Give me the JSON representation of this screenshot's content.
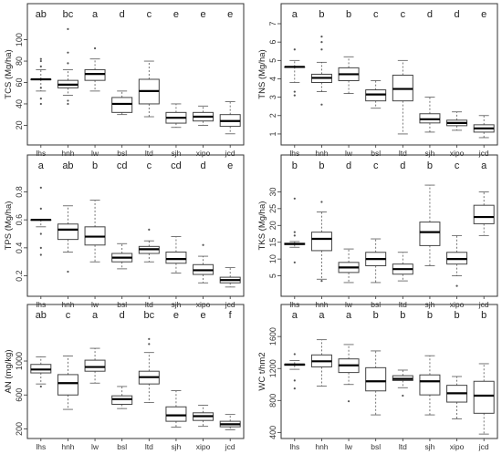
{
  "chart_data": [
    {
      "type": "box",
      "ylabel": "TCS (Mg/ha)",
      "ylim": [
        5,
        115
      ],
      "yticks": [
        20,
        40,
        60,
        80,
        100
      ],
      "categories": [
        "lhs",
        "hnh",
        "lw",
        "bsl",
        "ltd",
        "sjh",
        "xipo",
        "jcd"
      ],
      "letters": [
        "ab",
        "bc",
        "a",
        "d",
        "c",
        "e",
        "e",
        "e"
      ],
      "boxes": [
        {
          "min": 52,
          "q1": 63,
          "median": 63,
          "q3": 63,
          "max": 72,
          "outliers": [
            40,
            45,
            55,
            75,
            80,
            82
          ]
        },
        {
          "min": 48,
          "q1": 55,
          "median": 58,
          "q3": 62,
          "max": 72,
          "outliers": [
            40,
            43,
            78,
            88,
            110
          ]
        },
        {
          "min": 52,
          "q1": 62,
          "median": 68,
          "q3": 72,
          "max": 82,
          "outliers": [
            92
          ]
        },
        {
          "min": 30,
          "q1": 32,
          "median": 40,
          "q3": 46,
          "max": 52,
          "outliers": []
        },
        {
          "min": 28,
          "q1": 40,
          "median": 52,
          "q3": 63,
          "max": 80,
          "outliers": []
        },
        {
          "min": 18,
          "q1": 22,
          "median": 27,
          "q3": 32,
          "max": 40,
          "outliers": []
        },
        {
          "min": 20,
          "q1": 24,
          "median": 28,
          "q3": 32,
          "max": 38,
          "outliers": []
        },
        {
          "min": 12,
          "q1": 19,
          "median": 24,
          "q3": 30,
          "max": 42,
          "outliers": []
        }
      ]
    },
    {
      "type": "box",
      "ylabel": "TNS (Mg/ha)",
      "ylim": [
        0.6,
        7.0
      ],
      "yticks": [
        1,
        2,
        3,
        4,
        5,
        6,
        7
      ],
      "categories": [
        "lhs",
        "hnh",
        "lw",
        "bsl",
        "ltd",
        "sjh",
        "xipo",
        "jcd"
      ],
      "letters": [
        "a",
        "b",
        "b",
        "c",
        "c",
        "d",
        "d",
        "e"
      ],
      "boxes": [
        {
          "min": 3.8,
          "q1": 4.65,
          "median": 4.65,
          "q3": 4.65,
          "max": 5.0,
          "outliers": [
            3.1,
            3.3,
            5.6
          ]
        },
        {
          "min": 3.3,
          "q1": 3.8,
          "median": 4.05,
          "q3": 4.25,
          "max": 4.9,
          "outliers": [
            2.6,
            5.6,
            6.0,
            6.3
          ]
        },
        {
          "min": 3.2,
          "q1": 3.9,
          "median": 4.25,
          "q3": 4.6,
          "max": 5.2,
          "outliers": []
        },
        {
          "min": 2.4,
          "q1": 2.8,
          "median": 3.15,
          "q3": 3.4,
          "max": 3.9,
          "outliers": []
        },
        {
          "min": 1.0,
          "q1": 2.8,
          "median": 3.45,
          "q3": 4.2,
          "max": 5.0,
          "outliers": []
        },
        {
          "min": 1.1,
          "q1": 1.6,
          "median": 1.8,
          "q3": 2.1,
          "max": 3.0,
          "outliers": []
        },
        {
          "min": 1.2,
          "q1": 1.45,
          "median": 1.6,
          "q3": 1.75,
          "max": 2.2,
          "outliers": []
        },
        {
          "min": 0.8,
          "q1": 1.1,
          "median": 1.3,
          "q3": 1.5,
          "max": 2.0,
          "outliers": []
        }
      ]
    },
    {
      "type": "box",
      "ylabel": "TPS (Mg/ha)",
      "ylim": [
        0.08,
        0.92
      ],
      "yticks": [
        0.2,
        0.4,
        0.6,
        0.8
      ],
      "categories": [
        "lhs",
        "hnh",
        "lw",
        "bsl",
        "ltd",
        "sjh",
        "xipo",
        "jcd"
      ],
      "letters": [
        "a",
        "ab",
        "b",
        "cd",
        "c",
        "cd",
        "d",
        "e"
      ],
      "boxes": [
        {
          "min": 0.55,
          "q1": 0.6,
          "median": 0.6,
          "q3": 0.6,
          "max": 0.6,
          "outliers": [
            0.35,
            0.4,
            0.5,
            0.68,
            0.83
          ]
        },
        {
          "min": 0.37,
          "q1": 0.46,
          "median": 0.53,
          "q3": 0.57,
          "max": 0.7,
          "outliers": [
            0.23
          ]
        },
        {
          "min": 0.3,
          "q1": 0.42,
          "median": 0.48,
          "q3": 0.55,
          "max": 0.74,
          "outliers": []
        },
        {
          "min": 0.25,
          "q1": 0.3,
          "median": 0.33,
          "q3": 0.36,
          "max": 0.43,
          "outliers": []
        },
        {
          "min": 0.3,
          "q1": 0.36,
          "median": 0.39,
          "q3": 0.41,
          "max": 0.45,
          "outliers": [
            0.53
          ]
        },
        {
          "min": 0.22,
          "q1": 0.29,
          "median": 0.32,
          "q3": 0.37,
          "max": 0.48,
          "outliers": []
        },
        {
          "min": 0.15,
          "q1": 0.21,
          "median": 0.24,
          "q3": 0.28,
          "max": 0.34,
          "outliers": [
            0.42
          ]
        },
        {
          "min": 0.12,
          "q1": 0.15,
          "median": 0.17,
          "q3": 0.19,
          "max": 0.26,
          "outliers": []
        }
      ]
    },
    {
      "type": "box",
      "ylabel": "TKS (Mg/ha)",
      "ylim": [
        0,
        35
      ],
      "yticks": [
        5,
        10,
        15,
        20,
        25,
        30
      ],
      "categories": [
        "lhs",
        "hnh",
        "lw",
        "bsl",
        "ltd",
        "sjh",
        "xipo",
        "jcd"
      ],
      "letters": [
        "b",
        "b",
        "d",
        "c",
        "d",
        "b",
        "c",
        "a"
      ],
      "boxes": [
        {
          "min": 13.5,
          "q1": 14.3,
          "median": 14.5,
          "q3": 14.7,
          "max": 15.2,
          "outliers": [
            9,
            17,
            18,
            28
          ]
        },
        {
          "min": 4,
          "q1": 12.5,
          "median": 16,
          "q3": 18,
          "max": 24,
          "outliers": [
            3.5,
            27
          ]
        },
        {
          "min": 3,
          "q1": 6,
          "median": 7.5,
          "q3": 9,
          "max": 13,
          "outliers": []
        },
        {
          "min": 3,
          "q1": 8,
          "median": 10,
          "q3": 12,
          "max": 16,
          "outliers": []
        },
        {
          "min": 3.5,
          "q1": 5.5,
          "median": 7,
          "q3": 8.5,
          "max": 12,
          "outliers": []
        },
        {
          "min": 8,
          "q1": 14,
          "median": 18,
          "q3": 21,
          "max": 32,
          "outliers": []
        },
        {
          "min": 5,
          "q1": 8.5,
          "median": 10,
          "q3": 12,
          "max": 17,
          "outliers": [
            2
          ]
        },
        {
          "min": 17,
          "q1": 20.5,
          "median": 22.5,
          "q3": 26,
          "max": 30,
          "outliers": []
        }
      ]
    },
    {
      "type": "box",
      "ylabel": "AN (mg/kg)",
      "ylim": [
        130,
        1430
      ],
      "yticks": [
        200,
        600,
        1000
      ],
      "ytick_labels": [
        "200",
        "600",
        "1000"
      ],
      "categories": [
        "lhs",
        "hnh",
        "lw",
        "bsl",
        "ltd",
        "sjh",
        "xipo",
        "jcd"
      ],
      "letters": [
        "ab",
        "c",
        "a",
        "d",
        "bc",
        "e",
        "e",
        "f"
      ],
      "boxes": [
        {
          "min": 730,
          "q1": 860,
          "median": 900,
          "q3": 960,
          "max": 1050,
          "outliers": [
            700
          ]
        },
        {
          "min": 430,
          "q1": 600,
          "median": 740,
          "q3": 840,
          "max": 1060,
          "outliers": []
        },
        {
          "min": 740,
          "q1": 880,
          "median": 930,
          "q3": 1010,
          "max": 1150,
          "outliers": []
        },
        {
          "min": 440,
          "q1": 490,
          "median": 550,
          "q3": 590,
          "max": 700,
          "outliers": []
        },
        {
          "min": 510,
          "q1": 730,
          "median": 810,
          "q3": 880,
          "max": 1100,
          "outliers": [
            1200,
            1260
          ]
        },
        {
          "min": 220,
          "q1": 290,
          "median": 360,
          "q3": 460,
          "max": 650,
          "outliers": []
        },
        {
          "min": 230,
          "q1": 300,
          "median": 350,
          "q3": 390,
          "max": 480,
          "outliers": []
        },
        {
          "min": 190,
          "q1": 225,
          "median": 255,
          "q3": 290,
          "max": 370,
          "outliers": []
        }
      ]
    },
    {
      "type": "box",
      "ylabel": "WC t/hm2",
      "ylim": [
        370,
        1750
      ],
      "yticks": [
        400,
        800,
        1200,
        1600
      ],
      "categories": [
        "lhs",
        "hnh",
        "lw",
        "bsl",
        "ltd",
        "sjh",
        "xipo",
        "jcd"
      ],
      "letters": [
        "a",
        "a",
        "a",
        "b",
        "b",
        "b",
        "b",
        "b"
      ],
      "boxes": [
        {
          "min": 1190,
          "q1": 1240,
          "median": 1250,
          "q3": 1255,
          "max": 1300,
          "outliers": [
            950,
            1050,
            1380
          ]
        },
        {
          "min": 980,
          "q1": 1220,
          "median": 1290,
          "q3": 1370,
          "max": 1560,
          "outliers": []
        },
        {
          "min": 1000,
          "q1": 1150,
          "median": 1240,
          "q3": 1320,
          "max": 1500,
          "outliers": [
            790
          ]
        },
        {
          "min": 620,
          "q1": 920,
          "median": 1040,
          "q3": 1210,
          "max": 1420,
          "outliers": []
        },
        {
          "min": 960,
          "q1": 1050,
          "median": 1070,
          "q3": 1110,
          "max": 1180,
          "outliers": [
            860
          ]
        },
        {
          "min": 620,
          "q1": 870,
          "median": 1040,
          "q3": 1120,
          "max": 1360,
          "outliers": []
        },
        {
          "min": 570,
          "q1": 780,
          "median": 890,
          "q3": 990,
          "max": 1100,
          "outliers": []
        },
        {
          "min": 380,
          "q1": 640,
          "median": 860,
          "q3": 1040,
          "max": 1260,
          "outliers": []
        }
      ]
    }
  ]
}
